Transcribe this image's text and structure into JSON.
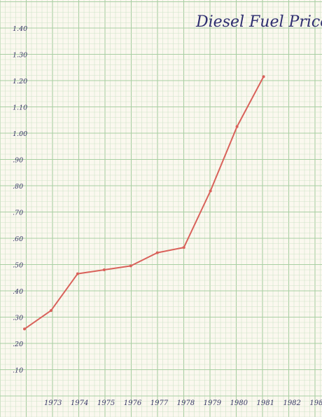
{
  "chart_data": {
    "type": "line",
    "title": "Diesel Fuel Price",
    "xlabel": "",
    "ylabel": "",
    "x_ticks": [
      "1973",
      "1974",
      "1975",
      "1976",
      "1977",
      "1978",
      "1979",
      "1980",
      "1981",
      "1982",
      "198"
    ],
    "y_ticks": [
      "1.40",
      "1.30",
      "1.20",
      "1.10",
      "1.00",
      ".90",
      ".80",
      ".70",
      ".60",
      ".50",
      ".40",
      ".30",
      ".20",
      ".10"
    ],
    "xlim": [
      1972,
      1983.2
    ],
    "ylim": [
      0,
      1.4
    ],
    "grid": true,
    "series": [
      {
        "name": "",
        "color": "#d9615a",
        "points": [
          {
            "x": 1972.0,
            "y": 0.255
          },
          {
            "x": 1973.0,
            "y": 0.325
          },
          {
            "x": 1974.0,
            "y": 0.465
          },
          {
            "x": 1975.0,
            "y": 0.48
          },
          {
            "x": 1976.0,
            "y": 0.495
          },
          {
            "x": 1977.0,
            "y": 0.545
          },
          {
            "x": 1978.0,
            "y": 0.565
          },
          {
            "x": 1979.0,
            "y": 0.78
          },
          {
            "x": 1980.0,
            "y": 1.025
          },
          {
            "x": 1981.0,
            "y": 1.215
          }
        ]
      }
    ]
  },
  "colors": {
    "paper": "#fbf8ef",
    "grid_minor": "#cfe3c8",
    "grid_major": "#a9cfa3",
    "ink": "#3b3b6a",
    "line": "#d9615a"
  }
}
